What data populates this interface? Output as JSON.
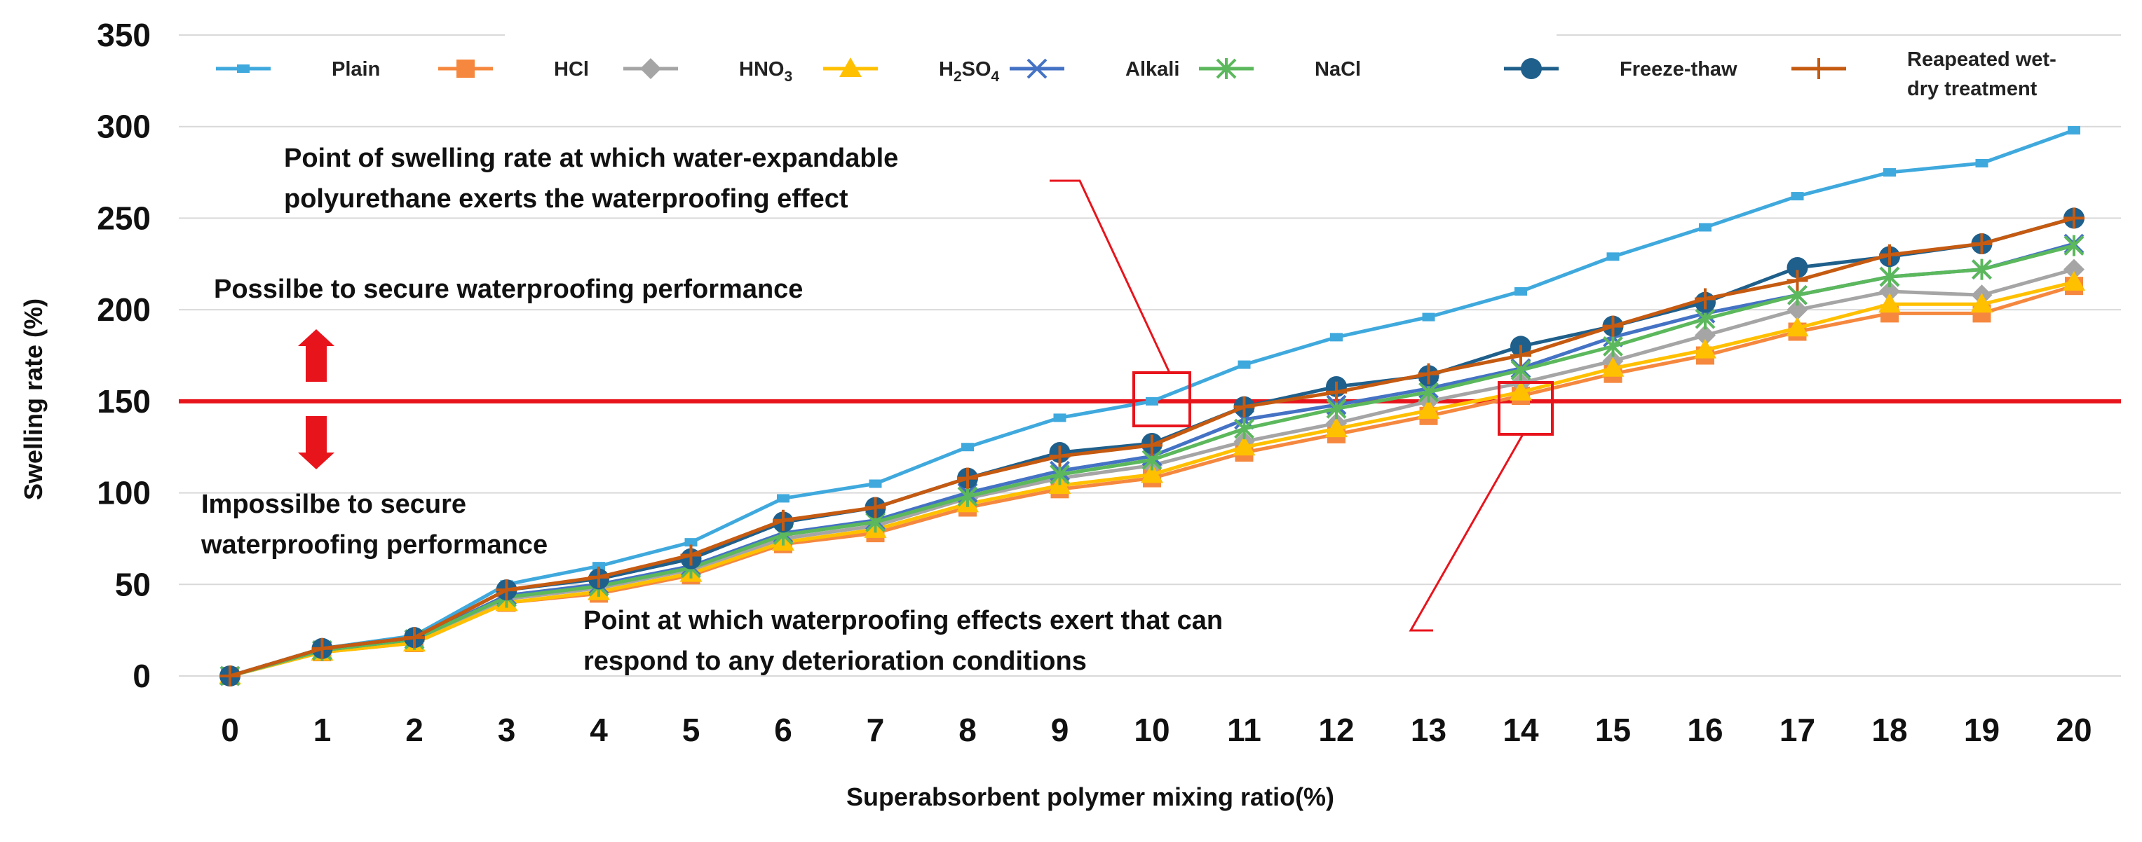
{
  "chart_data": {
    "type": "line",
    "title": "",
    "xlabel": "Superabsorbent polymer mixing ratio(%)",
    "ylabel": "Swelling rate (%)",
    "ylim": [
      0,
      350
    ],
    "yticks": [
      0,
      50,
      100,
      150,
      200,
      250,
      300,
      350
    ],
    "x": [
      0,
      1,
      2,
      3,
      4,
      5,
      6,
      7,
      8,
      9,
      10,
      11,
      12,
      13,
      14,
      15,
      16,
      17,
      18,
      19,
      20
    ],
    "grid": true,
    "legend_position": "top",
    "threshold": {
      "value": 150,
      "color": "#e8141c"
    },
    "series": [
      {
        "name": "Plain",
        "sub": "",
        "color": "#3fa9dd",
        "marker": "square-small",
        "values": [
          0,
          15,
          22,
          50,
          60,
          73,
          97,
          105,
          125,
          141,
          150,
          170,
          185,
          196,
          210,
          229,
          245,
          262,
          275,
          280,
          298
        ]
      },
      {
        "name": "HCl",
        "sub": "",
        "color": "#f5883e",
        "marker": "square",
        "values": [
          0,
          13,
          18,
          40,
          45,
          55,
          72,
          78,
          92,
          102,
          108,
          122,
          132,
          142,
          153,
          165,
          175,
          188,
          198,
          198,
          213
        ]
      },
      {
        "name": "HNO",
        "sub": "3",
        "color": "#a5a5a5",
        "marker": "diamond",
        "values": [
          0,
          14,
          19,
          42,
          48,
          58,
          75,
          82,
          97,
          108,
          115,
          128,
          138,
          150,
          160,
          172,
          186,
          200,
          210,
          208,
          222
        ]
      },
      {
        "name": "H",
        "sub": "2",
        "suffix": "SO",
        "sub2": "4",
        "color": "#ffc000",
        "marker": "triangle",
        "values": [
          0,
          13,
          18,
          40,
          46,
          56,
          73,
          80,
          94,
          104,
          110,
          125,
          135,
          145,
          155,
          168,
          178,
          190,
          203,
          203,
          215
        ]
      },
      {
        "name": "Alkali",
        "sub": "",
        "color": "#4472c4",
        "marker": "x",
        "values": [
          0,
          14,
          20,
          44,
          50,
          60,
          78,
          85,
          100,
          112,
          120,
          140,
          148,
          157,
          168,
          185,
          198,
          208,
          218,
          222,
          236
        ]
      },
      {
        "name": "NaCl",
        "sub": "",
        "color": "#5cb85c",
        "marker": "star",
        "values": [
          0,
          14,
          20,
          43,
          49,
          59,
          77,
          84,
          98,
          110,
          118,
          135,
          146,
          155,
          167,
          180,
          195,
          208,
          218,
          222,
          235
        ]
      },
      {
        "name": "Freeze-thaw",
        "sub": "",
        "color": "#1f5f8b",
        "marker": "circle",
        "values": [
          0,
          15,
          21,
          47,
          53,
          64,
          84,
          92,
          108,
          122,
          127,
          147,
          158,
          164,
          180,
          191,
          204,
          223,
          229,
          236,
          250
        ]
      },
      {
        "name": "Reapeated wet-",
        "line2": "dry treatment",
        "sub": "",
        "color": "#c55a11",
        "marker": "plus",
        "values": [
          0,
          15,
          21,
          47,
          54,
          66,
          85,
          92,
          108,
          120,
          126,
          147,
          155,
          165,
          175,
          191,
          206,
          216,
          230,
          236,
          250
        ]
      }
    ],
    "annotations": {
      "plain_point_line1": "Point of swelling rate at which water-expandable",
      "plain_point_line2": "polyurethane exerts the waterproofing effect",
      "any_condition_line1": "Point at which waterproofing effects exert that can",
      "any_condition_line2": "respond to any deterioration conditions",
      "possible": "Possilbe to secure waterproofing performance",
      "impossible_line1": "Impossilbe to secure",
      "impossible_line2": "waterproofing performance"
    }
  }
}
